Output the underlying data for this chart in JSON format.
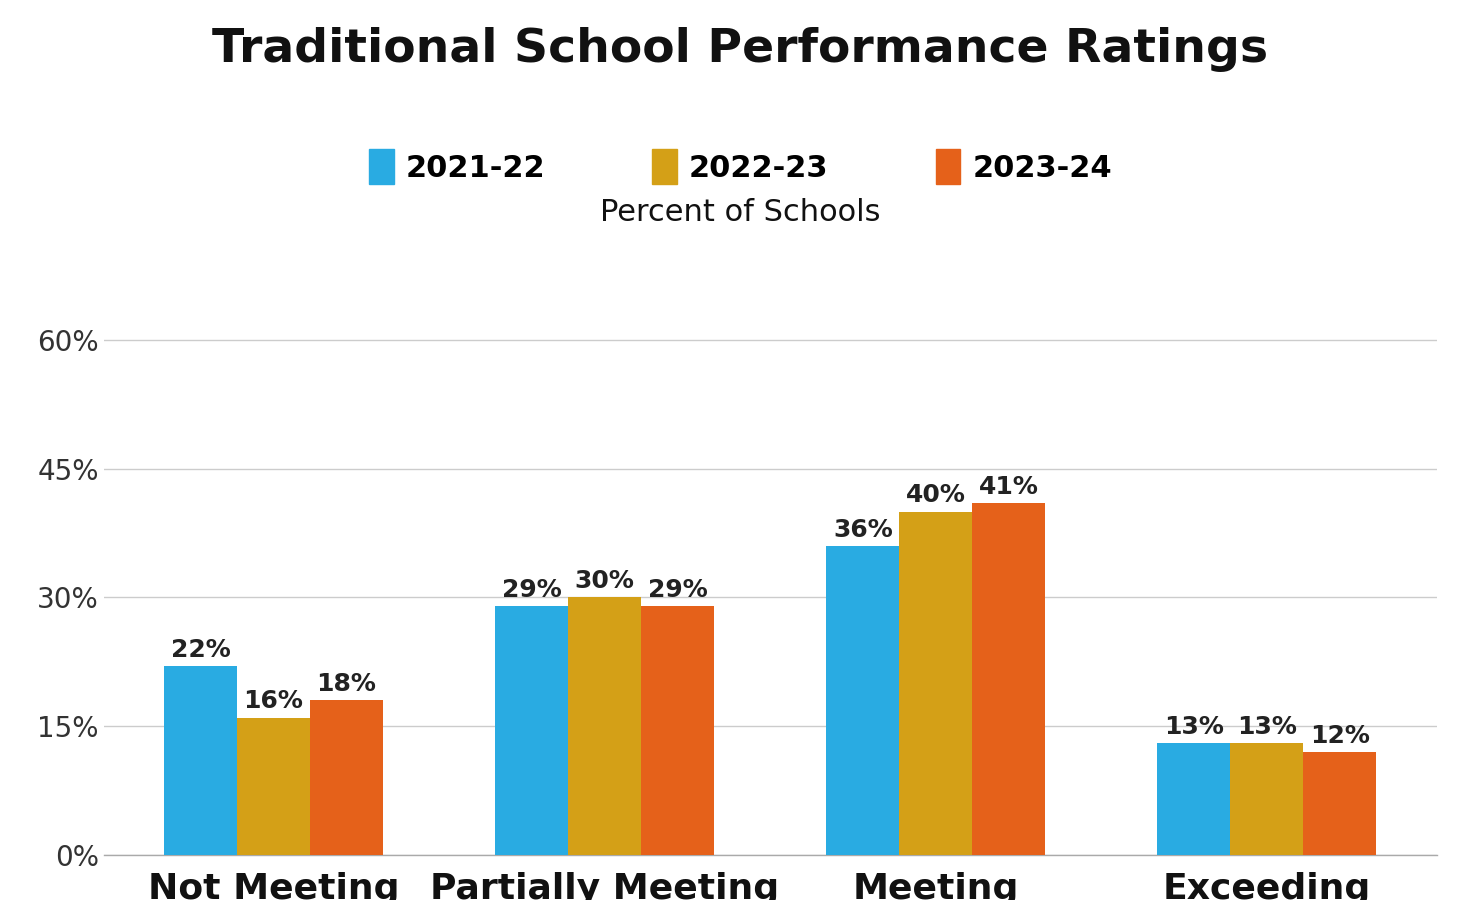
{
  "title": "Traditional School Performance Ratings",
  "subtitle": "Percent of Schools",
  "categories": [
    "Not Meeting",
    "Partially Meeting",
    "Meeting",
    "Exceeding"
  ],
  "series": [
    {
      "label": "2021-22",
      "color": "#29ABE2",
      "values": [
        22,
        29,
        36,
        13
      ]
    },
    {
      "label": "2022-23",
      "color": "#D4A017",
      "values": [
        16,
        30,
        40,
        13
      ]
    },
    {
      "label": "2023-24",
      "color": "#E5611A",
      "values": [
        18,
        29,
        41,
        12
      ]
    }
  ],
  "yticks": [
    0,
    15,
    30,
    45,
    60
  ],
  "ylim": [
    0,
    65
  ],
  "background_color": "#ffffff",
  "title_fontsize": 34,
  "legend_fontsize": 22,
  "subtitle_fontsize": 22,
  "tick_fontsize": 20,
  "bar_label_fontsize": 18,
  "xlabel_fontsize": 26,
  "bar_width": 0.22
}
